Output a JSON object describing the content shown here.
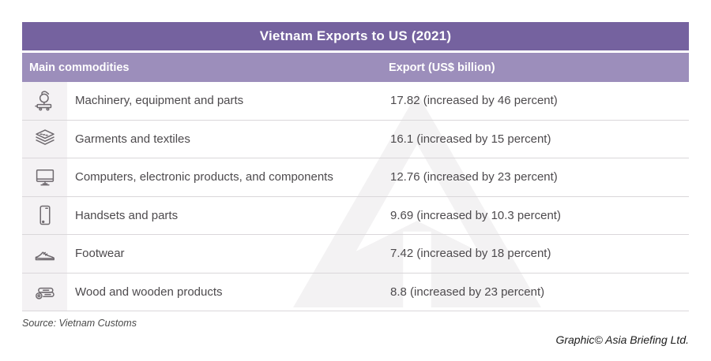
{
  "header": {
    "title": "Vietnam Exports to US (2021)"
  },
  "columns": {
    "commodities": "Main commodities",
    "export": "Export (US$ billion)"
  },
  "rows": [
    {
      "icon": "machinery-icon",
      "commodity": "Machinery, equipment and parts",
      "export": "17.82 (increased by 46 percent)"
    },
    {
      "icon": "garments-icon",
      "commodity": "Garments and textiles",
      "export": "16.1 (increased by 15 percent)"
    },
    {
      "icon": "computer-icon",
      "commodity": "Computers, electronic products, and components",
      "export": "12.76 (increased by 23 percent)"
    },
    {
      "icon": "handset-icon",
      "commodity": "Handsets and parts",
      "export": "9.69 (increased by 10.3 percent)"
    },
    {
      "icon": "footwear-icon",
      "commodity": "Footwear",
      "export": "7.42 (increased by 18 percent)"
    },
    {
      "icon": "wood-icon",
      "commodity": "Wood and wooden products",
      "export": "8.8 (increased by 23 percent)"
    }
  ],
  "footer": {
    "source": "Source: Vietnam Customs",
    "credit": "Graphic© Asia Briefing Ltd."
  },
  "colors": {
    "header_bg": "#75629F",
    "subheader_bg": "#9C8EBB",
    "icon_cell_bg": "#F4F2F4",
    "row_border": "#DAD7DA",
    "text": "#4D4A4D",
    "watermark": "#F3F2F3"
  },
  "chart_data": {
    "type": "table",
    "title": "Vietnam Exports to US (2021)",
    "columns": [
      "Main commodities",
      "Export (US$ billion)"
    ],
    "rows": [
      [
        "Machinery, equipment and parts",
        "17.82 (increased by 46 percent)"
      ],
      [
        "Garments and textiles",
        "16.1 (increased by 15 percent)"
      ],
      [
        "Computers, electronic products, and components",
        "12.76 (increased by 23 percent)"
      ],
      [
        "Handsets and parts",
        "9.69 (increased by 10.3 percent)"
      ],
      [
        "Footwear",
        "7.42 (increased by 18 percent)"
      ],
      [
        "Wood and wooden products",
        "8.8 (increased by 23 percent)"
      ]
    ],
    "values_usd_billion": [
      17.82,
      16.1,
      12.76,
      9.69,
      7.42,
      8.8
    ],
    "increase_percent": [
      46,
      15,
      23,
      10.3,
      18,
      23
    ],
    "source": "Source: Vietnam Customs",
    "credit": "Graphic© Asia Briefing Ltd."
  }
}
